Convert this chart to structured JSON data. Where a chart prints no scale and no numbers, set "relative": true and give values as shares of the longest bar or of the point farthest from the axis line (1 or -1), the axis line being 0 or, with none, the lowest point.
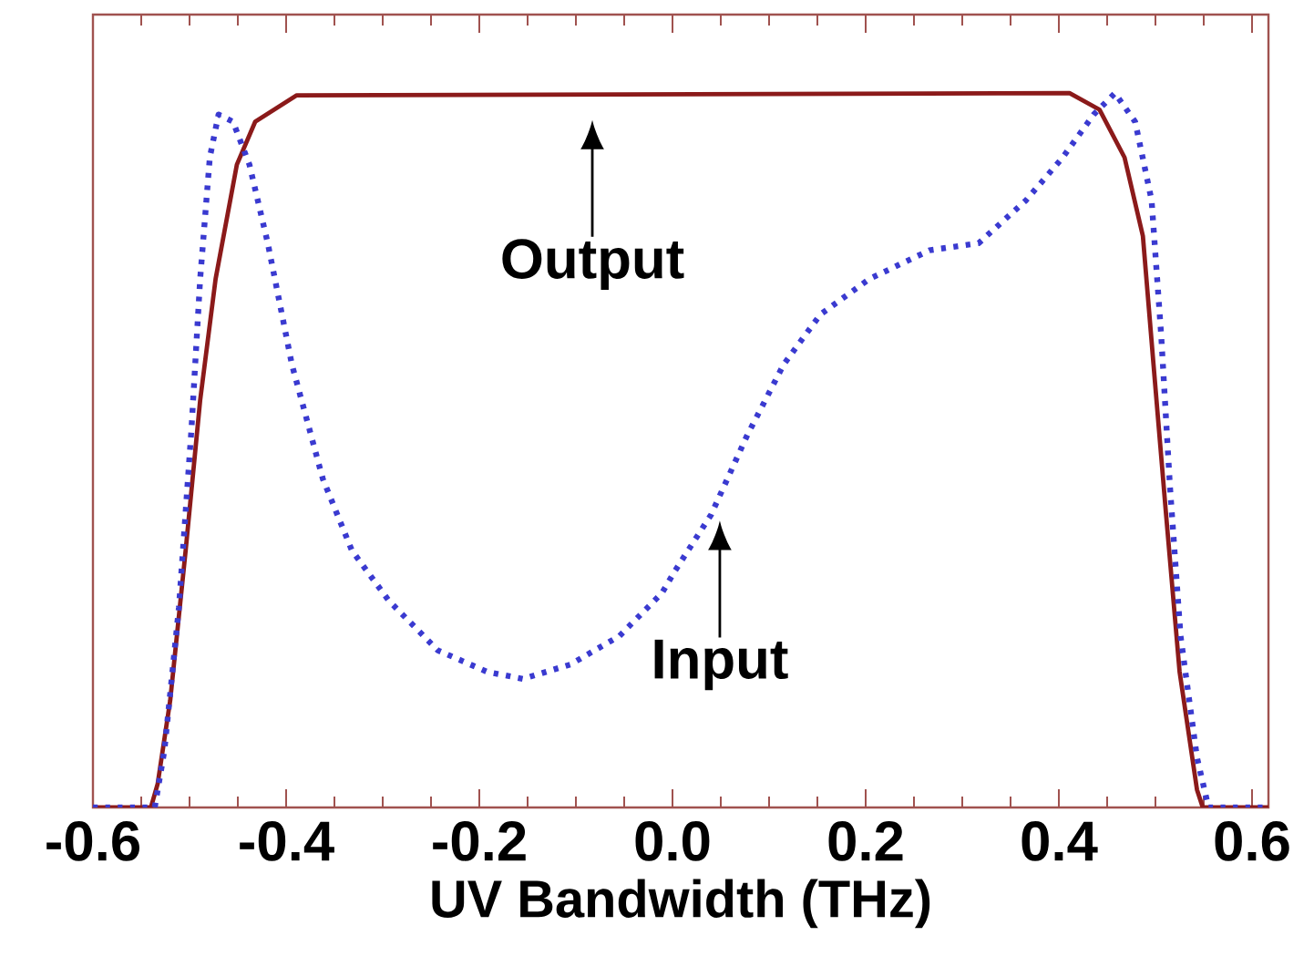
{
  "chart_data": {
    "type": "line",
    "relative": true,
    "xlabel": "UV Bandwidth (THz)",
    "xlim": [
      -0.6,
      0.617
    ],
    "xticks": [
      {
        "value": -0.6,
        "label": "-0.6"
      },
      {
        "value": -0.4,
        "label": "-0.4"
      },
      {
        "value": -0.2,
        "label": "-0.2"
      },
      {
        "value": 0,
        "label": "0.0"
      },
      {
        "value": 0.2,
        "label": "0.2"
      },
      {
        "value": 0.4,
        "label": "0.4"
      },
      {
        "value": 0.6,
        "label": "0.6"
      }
    ],
    "tick_labels": "x",
    "grid": false,
    "marker": "none",
    "series": [
      {
        "color": "#8b1a1a",
        "line_style": "solid",
        "x": [
          -0.6,
          -0.54,
          -0.533,
          -0.52,
          -0.504,
          -0.489,
          -0.473,
          -0.451,
          -0.432,
          -0.389,
          0.411,
          0.442,
          0.468,
          0.487,
          0.498,
          0.511,
          0.525,
          0.543,
          0.549,
          0.617
        ],
        "values": [
          0,
          0,
          0.033,
          0.15,
          0.36,
          0.57,
          0.74,
          0.9,
          0.96,
          0.997,
          1,
          0.977,
          0.91,
          0.8,
          0.62,
          0.41,
          0.19,
          0.025,
          0,
          0
        ]
      },
      {
        "color": "#3a3ad0",
        "line_style": "dotted",
        "x": [
          -0.6,
          -0.536,
          -0.526,
          -0.511,
          -0.498,
          -0.489,
          -0.479,
          -0.47,
          -0.455,
          -0.438,
          -0.419,
          -0.394,
          -0.362,
          -0.332,
          -0.294,
          -0.243,
          -0.192,
          -0.155,
          -0.106,
          -0.055,
          -0.011,
          0.002,
          0.04,
          0.077,
          0.115,
          0.153,
          0.204,
          0.266,
          0.317,
          0.366,
          0.404,
          0.436,
          0.458,
          0.479,
          0.496,
          0.506,
          0.515,
          0.526,
          0.543,
          0.555,
          0.617
        ],
        "values": [
          0,
          0,
          0.08,
          0.28,
          0.53,
          0.74,
          0.91,
          0.97,
          0.96,
          0.9,
          0.79,
          0.62,
          0.46,
          0.36,
          0.29,
          0.22,
          0.19,
          0.18,
          0.2,
          0.24,
          0.3,
          0.33,
          0.41,
          0.52,
          0.62,
          0.69,
          0.74,
          0.78,
          0.79,
          0.85,
          0.91,
          0.97,
          1,
          0.96,
          0.85,
          0.66,
          0.45,
          0.24,
          0.07,
          0,
          0
        ]
      }
    ],
    "annotations": [
      {
        "text": "Output",
        "x": -0.083,
        "y": 0.998
      },
      {
        "text": "Input",
        "x": 0.049,
        "y": 0.437
      }
    ]
  }
}
